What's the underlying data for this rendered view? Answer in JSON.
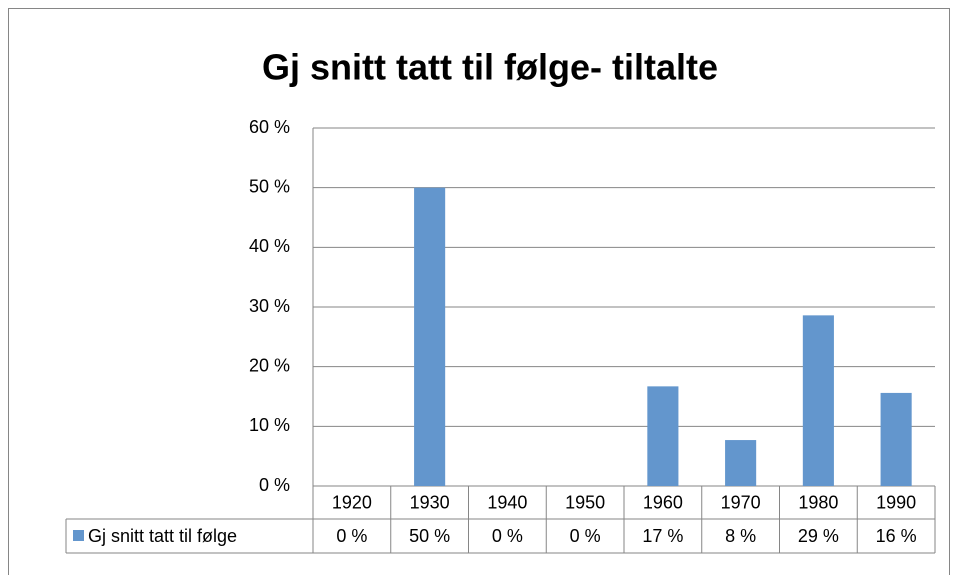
{
  "chart_data": {
    "type": "bar",
    "title": "Gj snitt tatt til følge- tiltalte",
    "categories": [
      "1920",
      "1930",
      "1940",
      "1950",
      "1960",
      "1970",
      "1980",
      "1990"
    ],
    "series": [
      {
        "name": "Gj snitt tatt til følge",
        "color": "#6396cd",
        "values": [
          0,
          50,
          0,
          0,
          16.7,
          7.7,
          28.6,
          15.6
        ],
        "value_labels": [
          "0 %",
          "50 %",
          "0 %",
          "0 %",
          "17 %",
          "8 %",
          "29 %",
          "16 %"
        ]
      }
    ],
    "ylim": [
      0,
      60
    ],
    "yticks": [
      {
        "value": 0,
        "label": "0 %"
      },
      {
        "value": 10,
        "label": "10 %"
      },
      {
        "value": 20,
        "label": "20 %"
      },
      {
        "value": 30,
        "label": "30 %"
      },
      {
        "value": 40,
        "label": "40 %"
      },
      {
        "value": 50,
        "label": "50 %"
      },
      {
        "value": 60,
        "label": "60 %"
      }
    ],
    "grid": true,
    "data_table": true
  }
}
